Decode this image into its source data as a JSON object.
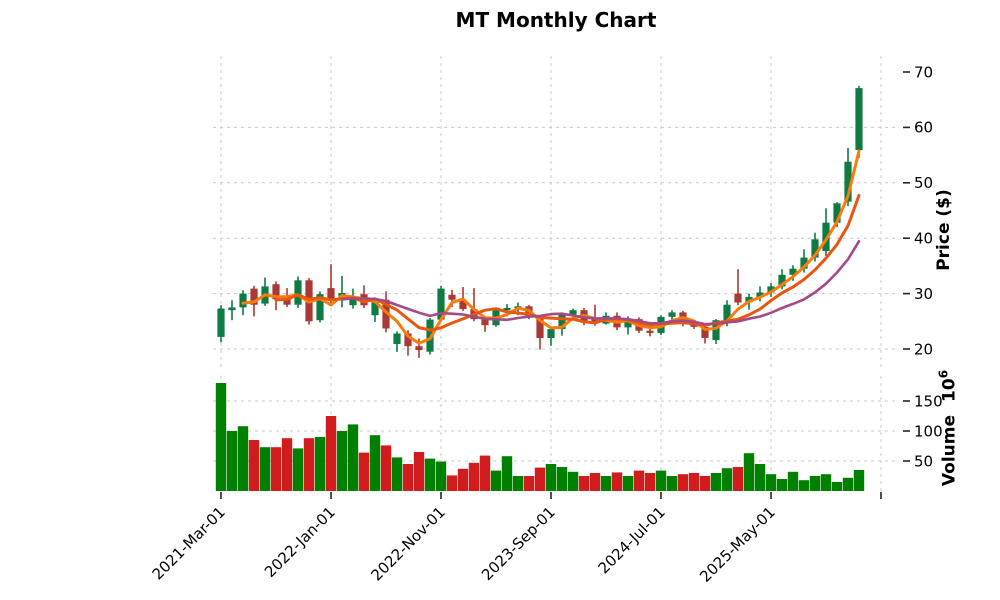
{
  "title": "MT Monthly Chart",
  "price_panel": {
    "ylabel": "Price ($)",
    "ticks": [
      70,
      60,
      50,
      40,
      30,
      20
    ],
    "grid_ticks": [
      60,
      50,
      40,
      30,
      20
    ],
    "ylim": [
      16.4,
      72.9
    ]
  },
  "volume_panel": {
    "ylabel": "Volume",
    "unit_base": "10",
    "unit_exponent": "6",
    "ticks": [
      150,
      100,
      50
    ],
    "ylim": [
      0,
      192
    ]
  },
  "x_axis": {
    "tick_labels": [
      "2021-Mar-01",
      "2022-Jan-01",
      "2022-Nov-01",
      "2023-Sep-01",
      "2024-Jul-01",
      "2025-May-01"
    ],
    "tick_indices": [
      0,
      10,
      20,
      30,
      40,
      50
    ],
    "edge_tick_index": 60
  },
  "chart_data": {
    "type": "candlestick",
    "subtype": "ohlc_with_volume_and_sma",
    "title": "MT Monthly Chart",
    "ylabel": "Price ($)",
    "volume_ylabel": "Volume 10^6",
    "grid": true,
    "dates": [
      "2021-03",
      "2021-04",
      "2021-05",
      "2021-06",
      "2021-07",
      "2021-08",
      "2021-09",
      "2021-10",
      "2021-11",
      "2021-12",
      "2022-01",
      "2022-02",
      "2022-03",
      "2022-04",
      "2022-05",
      "2022-06",
      "2022-07",
      "2022-08",
      "2022-09",
      "2022-10",
      "2022-11",
      "2022-12",
      "2023-01",
      "2023-02",
      "2023-03",
      "2023-04",
      "2023-05",
      "2023-06",
      "2023-07",
      "2023-08",
      "2023-09",
      "2023-10",
      "2023-11",
      "2023-12",
      "2024-01",
      "2024-02",
      "2024-03",
      "2024-04",
      "2024-05",
      "2024-06",
      "2024-07",
      "2024-08",
      "2024-09",
      "2024-10",
      "2024-11",
      "2024-12",
      "2025-01",
      "2025-02",
      "2025-03",
      "2025-04",
      "2025-05",
      "2025-06",
      "2025-07",
      "2025-08",
      "2025-09",
      "2025-10",
      "2025-11",
      "2025-12",
      "2026-01"
    ],
    "open": [
      22.2,
      27.0,
      27.5,
      30.9,
      28.2,
      31.7,
      29.5,
      28.0,
      32.4,
      25.2,
      31.0,
      28.9,
      27.9,
      29.9,
      26.1,
      28.9,
      20.9,
      22.8,
      20.5,
      19.5,
      25.3,
      29.8,
      28.9,
      27.2,
      25.4,
      24.3,
      27.0,
      27.4,
      27.7,
      25.8,
      22.0,
      23.6,
      26.2,
      27.0,
      25.4,
      24.6,
      26.0,
      23.9,
      25.4,
      23.3,
      22.9,
      25.8,
      26.6,
      24.6,
      24.0,
      21.6,
      25.2,
      30.0,
      28.4,
      29.4,
      30.2,
      31.3,
      33.4,
      34.5,
      36.5,
      37.7,
      42.8,
      46.6,
      55.9
    ],
    "high": [
      27.9,
      28.8,
      30.6,
      31.4,
      32.9,
      32.2,
      31.0,
      33.1,
      32.8,
      30.4,
      35.3,
      33.2,
      30.9,
      31.5,
      28.9,
      30.4,
      23.2,
      23.4,
      21.9,
      25.6,
      31.4,
      30.7,
      31.2,
      31.0,
      25.9,
      27.3,
      28.1,
      28.4,
      27.9,
      26.1,
      24.0,
      26.4,
      27.3,
      27.4,
      28.0,
      26.6,
      26.6,
      25.9,
      25.7,
      24.6,
      26.1,
      27.0,
      26.9,
      25.3,
      24.4,
      25.4,
      28.8,
      34.4,
      30.0,
      31.3,
      31.9,
      34.4,
      35.1,
      38.0,
      41.0,
      45.4,
      46.5,
      56.3,
      67.5
    ],
    "low": [
      21.2,
      25.2,
      26.1,
      25.9,
      27.8,
      27.0,
      27.6,
      27.4,
      24.4,
      24.8,
      28.0,
      27.5,
      27.3,
      27.4,
      24.9,
      23.0,
      19.5,
      18.8,
      18.4,
      19.0,
      25.0,
      27.6,
      26.9,
      25.0,
      23.1,
      24.0,
      25.9,
      26.1,
      25.4,
      19.9,
      20.6,
      22.4,
      25.5,
      24.3,
      24.2,
      24.4,
      23.4,
      22.6,
      22.9,
      22.3,
      22.5,
      24.5,
      24.1,
      23.6,
      21.0,
      20.9,
      24.1,
      27.9,
      27.1,
      28.6,
      29.4,
      30.8,
      32.3,
      33.8,
      35.8,
      36.8,
      42.0,
      45.8,
      54.5
    ],
    "close": [
      27.3,
      27.5,
      30.0,
      28.0,
      31.3,
      29.0,
      28.0,
      32.4,
      25.0,
      29.9,
      28.9,
      30.1,
      29.2,
      27.9,
      28.5,
      23.7,
      22.8,
      20.5,
      19.8,
      25.3,
      30.9,
      28.9,
      27.2,
      25.4,
      24.3,
      27.0,
      27.4,
      27.7,
      25.8,
      22.0,
      23.6,
      26.2,
      27.0,
      24.9,
      24.6,
      26.0,
      23.9,
      25.4,
      23.3,
      22.9,
      25.8,
      26.6,
      24.6,
      24.0,
      22.0,
      25.2,
      28.0,
      28.4,
      29.4,
      30.2,
      31.3,
      33.4,
      34.5,
      36.5,
      39.8,
      42.8,
      46.3,
      53.8,
      67.1
    ],
    "volume_millions": [
      180,
      100,
      108,
      85,
      73,
      73,
      88,
      71,
      88,
      90,
      125,
      100,
      111,
      64,
      93,
      76,
      56,
      45,
      65,
      54,
      49,
      26,
      37,
      47,
      59,
      34,
      58,
      25,
      25,
      39,
      45,
      40,
      32,
      25,
      30,
      25,
      31,
      25,
      34,
      30,
      34,
      25,
      28,
      30,
      25,
      30,
      38,
      40,
      63,
      45,
      28,
      20,
      32,
      18,
      25,
      28,
      15,
      22,
      35
    ],
    "moving_averages": [
      {
        "window": 3,
        "color": "#fb7c0a"
      },
      {
        "window": 6,
        "color": "#e9560e"
      },
      {
        "window": 12,
        "color": "#a44a87"
      }
    ],
    "colors": {
      "candle_up": "#0f7b44",
      "candle_down": "#a83933",
      "volume_up": "#008000",
      "volume_down": "#d01c1c",
      "grid": "#c9c9c9",
      "tick": "#262626",
      "background": "#ffffff"
    }
  }
}
